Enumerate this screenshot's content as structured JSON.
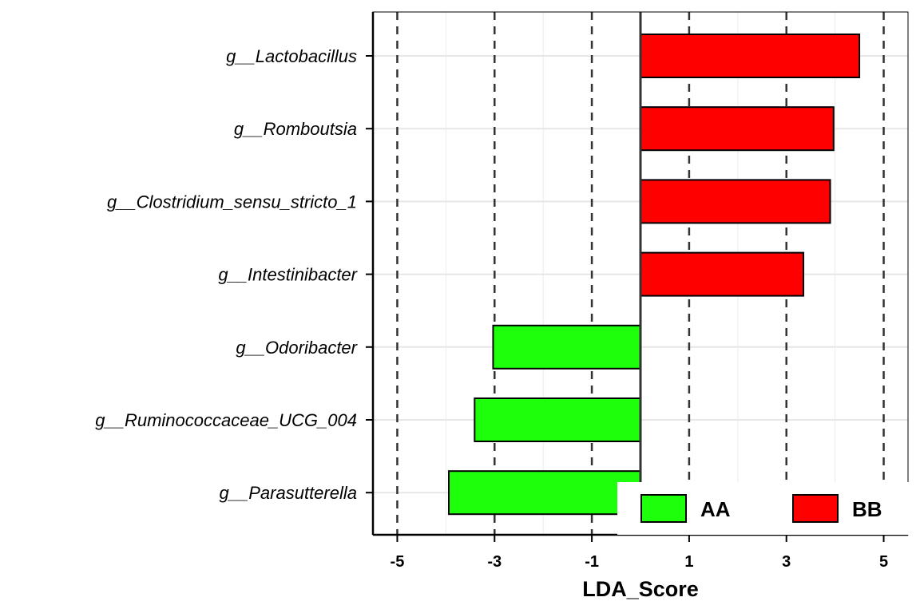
{
  "chart_data": {
    "type": "bar",
    "orientation": "horizontal",
    "categories": [
      "g__Lactobacillus",
      "g__Romboutsia",
      "g__Clostridium_sensu_stricto_1",
      "g__Intestinibacter",
      "g__Odoribacter",
      "g__Ruminococcaceae_UCG_004",
      "g__Parasutterella"
    ],
    "values": [
      4.5,
      3.97,
      3.9,
      3.35,
      -3.03,
      -3.41,
      -3.94
    ],
    "groups": [
      "BB",
      "BB",
      "BB",
      "BB",
      "AA",
      "AA",
      "AA"
    ],
    "xlabel": "LDA_Score",
    "xlim": [
      -5.5,
      5.5
    ],
    "xticks": [
      -5,
      -3,
      -1,
      1,
      3,
      5
    ],
    "xtick_labels": [
      "-5",
      "-3",
      "-1",
      "1",
      "3",
      "5"
    ],
    "dashed_reference_lines": [
      -5,
      -3,
      -1,
      1,
      3,
      5
    ],
    "grid": true,
    "legend": {
      "position": "bottom-right",
      "entries": [
        {
          "label": "AA",
          "color": "#1EFF0C"
        },
        {
          "label": "BB",
          "color": "#FF0000"
        }
      ]
    },
    "colors": {
      "AA": "#1EFF0C",
      "BB": "#FF0000"
    }
  }
}
